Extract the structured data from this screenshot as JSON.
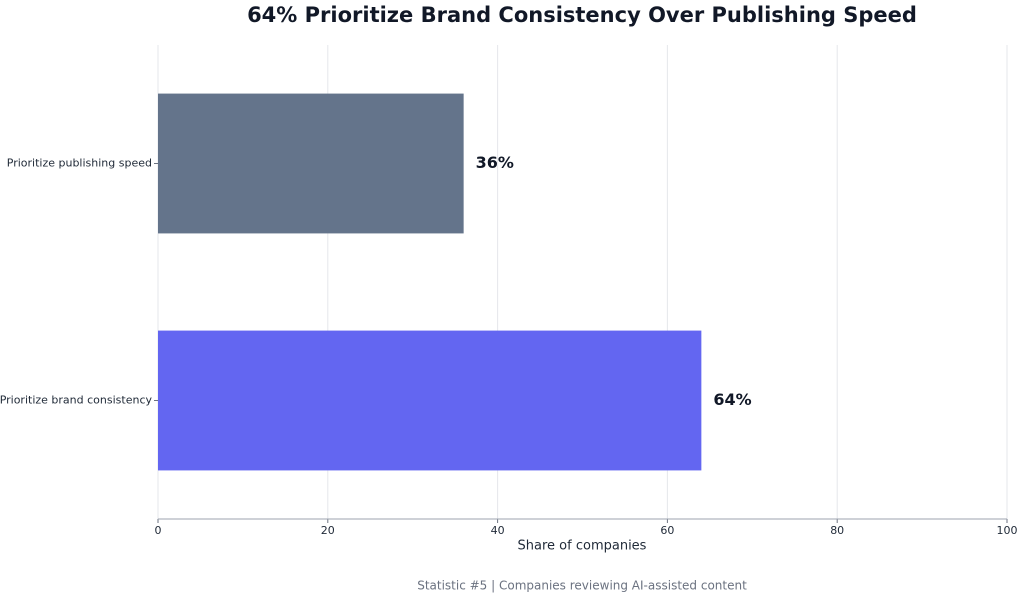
{
  "chart_data": {
    "type": "bar",
    "orientation": "horizontal",
    "title": "64% Prioritize Brand Consistency Over Publishing Speed",
    "categories": [
      "Prioritize publishing speed",
      "Prioritize brand consistency"
    ],
    "values": [
      36,
      64
    ],
    "value_labels": [
      "36%",
      "64%"
    ],
    "colors": [
      "#64748b",
      "#6366f1"
    ],
    "xlabel": "Share of companies",
    "xlim": [
      0,
      100
    ],
    "xticks": [
      0,
      20,
      40,
      60,
      80,
      100
    ],
    "grid": true,
    "caption": "Statistic #5 | Companies reviewing AI-assisted content"
  }
}
